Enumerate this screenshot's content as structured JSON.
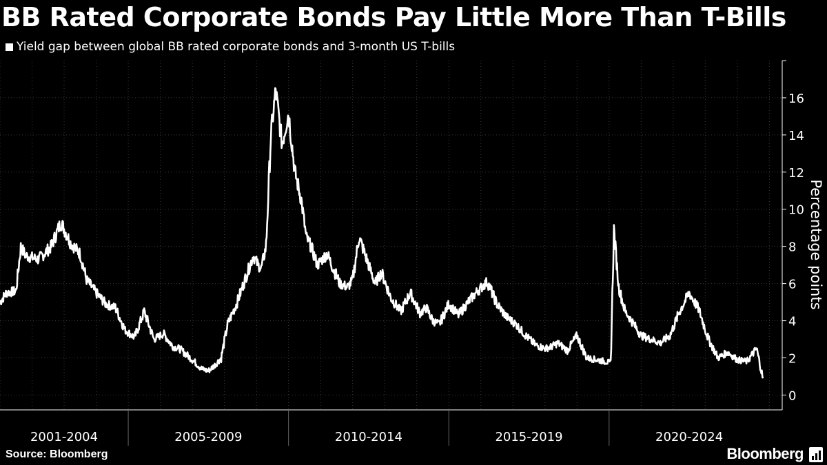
{
  "chart_data": {
    "type": "line",
    "title": "BB Rated Corporate Bonds Pay Little More Than T-Bills",
    "series": [
      {
        "name": "Yield gap between global BB rated corporate bonds and 3-month US T-bills",
        "x": [
          2001.0,
          2001.2,
          2001.5,
          2001.65,
          2001.8,
          2002.2,
          2002.6,
          2002.9,
          2003.2,
          2003.5,
          2003.7,
          2004.0,
          2004.3,
          2004.6,
          2004.9,
          2005.2,
          2005.5,
          2005.8,
          2006.1,
          2006.4,
          2006.6,
          2007.0,
          2007.3,
          2007.5,
          2007.7,
          2007.9,
          2008.1,
          2008.4,
          2008.7,
          2008.9,
          2009.05,
          2009.15,
          2009.3,
          2009.45,
          2009.6,
          2009.8,
          2010.0,
          2010.2,
          2010.4,
          2010.55,
          2010.7,
          2010.9,
          2011.2,
          2011.6,
          2011.85,
          2012.0,
          2012.2,
          2012.5,
          2012.7,
          2012.9,
          2013.2,
          2013.5,
          2013.8,
          2014.1,
          2014.3,
          2014.5,
          2014.7,
          2015.0,
          2015.3,
          2015.6,
          2015.9,
          2016.2,
          2016.5,
          2016.8,
          2017.1,
          2017.4,
          2017.7,
          2018.0,
          2018.2,
          2018.4,
          2018.7,
          2019.0,
          2019.3,
          2019.6,
          2019.9,
          2020.05,
          2020.15,
          2020.3,
          2020.5,
          2020.7,
          2021.0,
          2021.3,
          2021.6,
          2021.9,
          2022.2,
          2022.5,
          2022.8,
          2023.1,
          2023.4,
          2023.7,
          2024.0,
          2024.3,
          2024.6,
          2024.8
        ],
        "values": [
          5.0,
          5.5,
          5.6,
          8.0,
          7.5,
          7.3,
          8.0,
          9.3,
          8.2,
          7.6,
          6.2,
          5.5,
          4.9,
          4.7,
          3.5,
          3.1,
          4.5,
          3.0,
          3.3,
          2.6,
          2.5,
          1.9,
          1.4,
          1.3,
          1.6,
          2.0,
          3.8,
          5.0,
          6.5,
          7.5,
          7.0,
          6.8,
          8.0,
          14.0,
          16.4,
          13.5,
          15.2,
          12.0,
          10.5,
          8.5,
          8.0,
          7.0,
          7.6,
          6.0,
          5.8,
          6.2,
          8.5,
          7.0,
          6.0,
          6.6,
          5.2,
          4.5,
          5.5,
          4.4,
          4.7,
          4.0,
          3.8,
          4.9,
          4.3,
          5.0,
          5.6,
          6.1,
          4.9,
          4.2,
          3.8,
          3.2,
          2.7,
          2.5,
          2.6,
          2.8,
          2.4,
          3.2,
          2.0,
          1.9,
          1.8,
          1.7,
          8.9,
          5.8,
          4.5,
          4.0,
          3.2,
          3.0,
          2.8,
          3.2,
          4.5,
          5.5,
          4.6,
          3.0,
          2.0,
          2.3,
          1.9,
          1.8,
          2.5,
          0.9
        ]
      }
    ],
    "x_categories": [
      "2001-2004",
      "2005-2009",
      "2010-2014",
      "2015-2019",
      "2020-2024"
    ],
    "ylabel": "Percentage points",
    "yticks": [
      0,
      2,
      4,
      6,
      8,
      10,
      12,
      14,
      16
    ],
    "ylim": [
      -0.8,
      18
    ],
    "xlim": [
      2001.0,
      2025.4
    ],
    "legend_position": "top-left",
    "grid": true
  },
  "footer": {
    "source": "Source: Bloomberg",
    "brand": "Bloomberg"
  },
  "colors": {
    "background": "#000000",
    "line": "#ffffff",
    "grid": "#3a3a3a"
  }
}
